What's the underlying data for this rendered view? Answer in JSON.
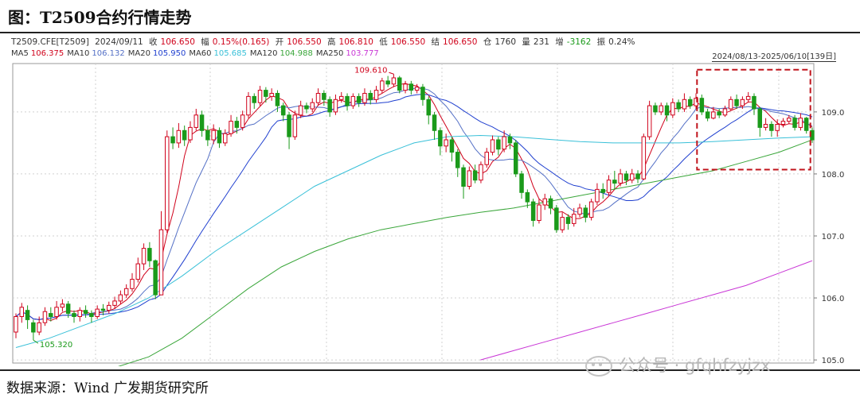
{
  "title": "图：T2509合约行情走势",
  "info": {
    "code": "T2509.CFE[T2509]",
    "date": "2024/09/11",
    "close_label": "收",
    "close": "106.650",
    "change_label": "幅",
    "change": "0.15%(0.165)",
    "open_label": "开",
    "open": "106.550",
    "high_label": "高",
    "high": "106.810",
    "low_label": "低",
    "low": "106.550",
    "settle_label": "结",
    "settle": "106.650",
    "oi_label": "仓",
    "oi": "1760",
    "volume_label": "量",
    "volume": "231",
    "oi_change_label": "增",
    "oi_change": "-3162",
    "amplitude_label": "振",
    "amplitude": "0.24%"
  },
  "ma_legend": [
    {
      "label": "MA5",
      "value": "106.375",
      "color": "#d0021b"
    },
    {
      "label": "MA10",
      "value": "106.132",
      "color": "#5470c6"
    },
    {
      "label": "MA20",
      "value": "105.950",
      "color": "#1f3fcf"
    },
    {
      "label": "MA60",
      "value": "105.685",
      "color": "#39c0d8"
    },
    {
      "label": "MA120",
      "value": "104.988",
      "color": "#3aa63a"
    },
    {
      "label": "MA250",
      "value": "103.777",
      "color": "#c936d6"
    }
  ],
  "date_range": "2024/08/13-2025/06/10[139日]",
  "source": "数据来源：Wind 广发期货研究所",
  "watermark": "公众号 · gfqhfzyjzx",
  "colors": {
    "up": "#d0021b",
    "down": "#1a9a1a",
    "highlight_box": "#c0141c"
  },
  "chart_data": {
    "type": "candlestick",
    "ylim": [
      104.95,
      109.78
    ],
    "y_ticks": [
      "105.0",
      "106.0",
      "107.0",
      "108.0",
      "109.0"
    ],
    "annotations": [
      {
        "text": "109.610",
        "index": 65,
        "value": 109.61
      },
      {
        "text": "105.320",
        "index": 3,
        "value": 105.32
      }
    ],
    "highlight_range": {
      "from_index": 118,
      "to_index": 136,
      "y_from": 108.07,
      "y_to": 109.68
    },
    "candles": [
      [
        105.45,
        105.7,
        105.75,
        105.35
      ],
      [
        105.7,
        105.85,
        105.92,
        105.6
      ],
      [
        105.8,
        105.65,
        105.88,
        105.5
      ],
      [
        105.6,
        105.45,
        105.65,
        105.32
      ],
      [
        105.45,
        105.6,
        105.7,
        105.4
      ],
      [
        105.6,
        105.78,
        105.85,
        105.55
      ],
      [
        105.75,
        105.7,
        105.85,
        105.62
      ],
      [
        105.7,
        105.85,
        105.95,
        105.65
      ],
      [
        105.85,
        105.9,
        105.98,
        105.78
      ],
      [
        105.9,
        105.75,
        105.95,
        105.68
      ],
      [
        105.75,
        105.7,
        105.8,
        105.6
      ],
      [
        105.7,
        105.8,
        105.85,
        105.62
      ],
      [
        105.8,
        105.75,
        105.88,
        105.68
      ],
      [
        105.75,
        105.7,
        105.8,
        105.6
      ],
      [
        105.7,
        105.82,
        105.88,
        105.66
      ],
      [
        105.82,
        105.8,
        105.9,
        105.72
      ],
      [
        105.8,
        105.88,
        105.94,
        105.75
      ],
      [
        105.88,
        105.95,
        106.02,
        105.82
      ],
      [
        105.95,
        106.05,
        106.12,
        105.9
      ],
      [
        106.05,
        106.15,
        106.22,
        106.0
      ],
      [
        106.15,
        106.3,
        106.4,
        106.1
      ],
      [
        106.3,
        106.55,
        106.65,
        106.25
      ],
      [
        106.55,
        106.8,
        106.88,
        106.45
      ],
      [
        106.8,
        106.6,
        106.9,
        106.5
      ],
      [
        106.6,
        106.05,
        106.62,
        105.98
      ],
      [
        106.05,
        107.1,
        107.4,
        106.05
      ],
      [
        107.1,
        108.6,
        108.7,
        107.05
      ],
      [
        108.6,
        108.5,
        108.75,
        108.4
      ],
      [
        108.5,
        108.7,
        108.82,
        108.42
      ],
      [
        108.7,
        108.55,
        108.78,
        108.45
      ],
      [
        108.55,
        108.75,
        108.85,
        108.5
      ],
      [
        108.75,
        108.95,
        109.05,
        108.7
      ],
      [
        108.95,
        108.7,
        109.02,
        108.6
      ],
      [
        108.7,
        108.55,
        108.78,
        108.45
      ],
      [
        108.55,
        108.7,
        108.8,
        108.48
      ],
      [
        108.7,
        108.5,
        108.75,
        108.42
      ],
      [
        108.5,
        108.65,
        108.72,
        108.45
      ],
      [
        108.65,
        108.85,
        108.95,
        108.6
      ],
      [
        108.85,
        108.75,
        108.92,
        108.65
      ],
      [
        108.75,
        108.95,
        109.02,
        108.7
      ],
      [
        108.95,
        109.25,
        109.32,
        108.9
      ],
      [
        109.25,
        109.15,
        109.3,
        109.05
      ],
      [
        109.15,
        109.35,
        109.42,
        109.1
      ],
      [
        109.35,
        109.25,
        109.4,
        109.15
      ],
      [
        109.25,
        109.3,
        109.38,
        109.18
      ],
      [
        109.3,
        109.1,
        109.35,
        109.0
      ],
      [
        109.1,
        108.95,
        109.15,
        108.85
      ],
      [
        108.95,
        108.6,
        109.0,
        108.4
      ],
      [
        108.6,
        108.95,
        109.02,
        108.55
      ],
      [
        108.95,
        109.1,
        109.18,
        108.9
      ],
      [
        109.1,
        109.05,
        109.15,
        108.98
      ],
      [
        109.05,
        109.15,
        109.22,
        109.0
      ],
      [
        109.15,
        109.3,
        109.38,
        109.1
      ],
      [
        109.3,
        109.2,
        109.35,
        109.1
      ],
      [
        109.2,
        109.0,
        109.25,
        108.92
      ],
      [
        109.0,
        109.2,
        109.28,
        108.95
      ],
      [
        109.2,
        109.25,
        109.32,
        109.15
      ],
      [
        109.25,
        109.1,
        109.3,
        109.02
      ],
      [
        109.1,
        109.25,
        109.3,
        109.05
      ],
      [
        109.25,
        109.15,
        109.3,
        109.08
      ],
      [
        109.15,
        109.3,
        109.38,
        109.1
      ],
      [
        109.3,
        109.2,
        109.35,
        109.12
      ],
      [
        109.2,
        109.35,
        109.42,
        109.15
      ],
      [
        109.35,
        109.5,
        109.55,
        109.3
      ],
      [
        109.5,
        109.45,
        109.58,
        109.4
      ],
      [
        109.45,
        109.55,
        109.61,
        109.4
      ],
      [
        109.55,
        109.35,
        109.58,
        109.3
      ],
      [
        109.35,
        109.45,
        109.5,
        109.3
      ],
      [
        109.45,
        109.35,
        109.5,
        109.28
      ],
      [
        109.35,
        109.4,
        109.45,
        109.3
      ],
      [
        109.4,
        109.2,
        109.45,
        109.1
      ],
      [
        109.2,
        108.95,
        109.25,
        108.8
      ],
      [
        108.95,
        108.7,
        109.0,
        108.55
      ],
      [
        108.7,
        108.45,
        108.75,
        108.3
      ],
      [
        108.45,
        108.55,
        108.65,
        108.35
      ],
      [
        108.55,
        108.35,
        108.6,
        108.2
      ],
      [
        108.35,
        108.1,
        108.4,
        107.95
      ],
      [
        108.1,
        107.8,
        108.15,
        107.6
      ],
      [
        107.8,
        108.05,
        108.12,
        107.75
      ],
      [
        108.05,
        107.9,
        108.15,
        107.85
      ],
      [
        107.9,
        108.15,
        108.2,
        107.85
      ],
      [
        108.15,
        108.35,
        108.42,
        108.1
      ],
      [
        108.35,
        108.55,
        108.62,
        108.3
      ],
      [
        108.55,
        108.4,
        108.6,
        108.3
      ],
      [
        108.4,
        108.6,
        108.7,
        108.35
      ],
      [
        108.6,
        108.5,
        108.65,
        108.4
      ],
      [
        108.5,
        108.0,
        108.55,
        107.95
      ],
      [
        108.0,
        107.7,
        108.05,
        107.6
      ],
      [
        107.7,
        107.55,
        107.75,
        107.45
      ],
      [
        107.55,
        107.25,
        107.6,
        107.15
      ],
      [
        107.25,
        107.5,
        107.6,
        107.2
      ],
      [
        107.5,
        107.6,
        107.68,
        107.42
      ],
      [
        107.6,
        107.45,
        107.65,
        107.35
      ],
      [
        107.45,
        107.1,
        107.5,
        107.05
      ],
      [
        107.1,
        107.3,
        107.38,
        107.05
      ],
      [
        107.3,
        107.2,
        107.35,
        107.1
      ],
      [
        107.2,
        107.35,
        107.45,
        107.15
      ],
      [
        107.35,
        107.45,
        107.52,
        107.3
      ],
      [
        107.45,
        107.3,
        107.5,
        107.22
      ],
      [
        107.3,
        107.55,
        107.6,
        107.25
      ],
      [
        107.55,
        107.75,
        107.85,
        107.5
      ],
      [
        107.75,
        107.7,
        107.85,
        107.6
      ],
      [
        107.7,
        107.9,
        107.98,
        107.65
      ],
      [
        107.9,
        107.85,
        108.05,
        107.75
      ],
      [
        107.85,
        108.0,
        108.08,
        107.8
      ],
      [
        108.0,
        107.9,
        108.05,
        107.82
      ],
      [
        107.9,
        108.0,
        108.08,
        107.85
      ],
      [
        108.0,
        107.92,
        108.06,
        107.85
      ],
      [
        107.92,
        108.6,
        108.65,
        107.9
      ],
      [
        108.6,
        109.1,
        109.18,
        108.55
      ],
      [
        109.1,
        109.0,
        109.15,
        108.95
      ],
      [
        109.0,
        109.1,
        109.15,
        108.95
      ],
      [
        109.1,
        108.95,
        109.15,
        108.85
      ],
      [
        108.95,
        109.15,
        109.22,
        108.9
      ],
      [
        109.15,
        109.05,
        109.2,
        109.0
      ],
      [
        109.05,
        109.2,
        109.3,
        109.0
      ],
      [
        109.2,
        109.1,
        109.25,
        109.05
      ],
      [
        109.1,
        109.22,
        109.3,
        109.05
      ],
      [
        109.22,
        109.0,
        109.28,
        108.95
      ],
      [
        109.0,
        108.9,
        109.05,
        108.85
      ],
      [
        108.9,
        109.0,
        109.08,
        108.88
      ],
      [
        109.0,
        108.95,
        109.05,
        108.9
      ],
      [
        108.95,
        109.05,
        109.1,
        108.92
      ],
      [
        109.05,
        109.2,
        109.25,
        109.02
      ],
      [
        109.2,
        109.1,
        109.28,
        109.05
      ],
      [
        109.1,
        109.2,
        109.25,
        109.05
      ],
      [
        109.2,
        109.25,
        109.32,
        109.15
      ],
      [
        109.25,
        109.05,
        109.3,
        108.95
      ],
      [
        109.05,
        108.75,
        109.08,
        108.6
      ],
      [
        108.75,
        108.8,
        108.9,
        108.7
      ],
      [
        108.8,
        108.7,
        108.85,
        108.6
      ],
      [
        108.7,
        108.8,
        108.88,
        108.6
      ],
      [
        108.8,
        108.85,
        108.9,
        108.75
      ],
      [
        108.85,
        108.9,
        108.95,
        108.8
      ],
      [
        108.9,
        108.75,
        108.95,
        108.7
      ],
      [
        108.75,
        108.9,
        108.98,
        108.7
      ],
      [
        108.9,
        108.7,
        108.92,
        108.65
      ],
      [
        108.7,
        108.55,
        108.75,
        108.5
      ]
    ],
    "series": [
      {
        "name": "MA5",
        "color": "#d0021b"
      },
      {
        "name": "MA10",
        "color": "#5470c6"
      },
      {
        "name": "MA20",
        "color": "#1f3fcf"
      },
      {
        "name": "MA60",
        "color": "#39c0d8",
        "values": [
          105.2,
          105.35,
          105.55,
          105.75,
          106.0,
          106.35,
          106.75,
          107.1,
          107.45,
          107.8,
          108.05,
          108.3,
          108.5,
          108.6,
          108.62,
          108.6,
          108.56,
          108.52,
          108.5,
          108.5,
          108.5,
          108.52,
          108.55,
          108.58,
          108.6
        ]
      },
      {
        "name": "MA120",
        "color": "#3aa63a",
        "values": [
          null,
          null,
          null,
          104.88,
          105.05,
          105.35,
          105.75,
          106.15,
          106.5,
          106.75,
          106.95,
          107.1,
          107.2,
          107.3,
          107.38,
          107.45,
          107.55,
          107.65,
          107.75,
          107.85,
          107.95,
          108.05,
          108.2,
          108.35,
          108.55
        ]
      },
      {
        "name": "MA250",
        "color": "#c936d6",
        "values": [
          null,
          null,
          null,
          null,
          null,
          null,
          null,
          null,
          null,
          null,
          null,
          null,
          null,
          null,
          105.0,
          105.15,
          105.3,
          105.45,
          105.6,
          105.75,
          105.9,
          106.05,
          106.2,
          106.4,
          106.6
        ]
      }
    ]
  }
}
